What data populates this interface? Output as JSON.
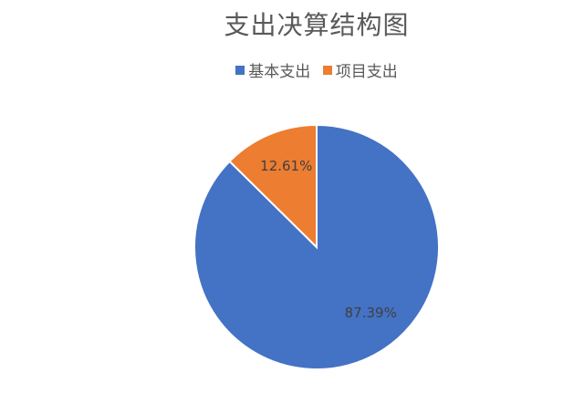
{
  "chart_data": {
    "type": "pie",
    "title": "支出决算结构图",
    "legend_position": "top",
    "categories": [
      "基本支出",
      "项目支出"
    ],
    "values": [
      87.39,
      12.61
    ],
    "data_labels": [
      "87.39%",
      "12.61%"
    ],
    "colors": [
      "#4472C4",
      "#ED7D31"
    ],
    "start_angle": 0,
    "direction": "clockwise"
  }
}
